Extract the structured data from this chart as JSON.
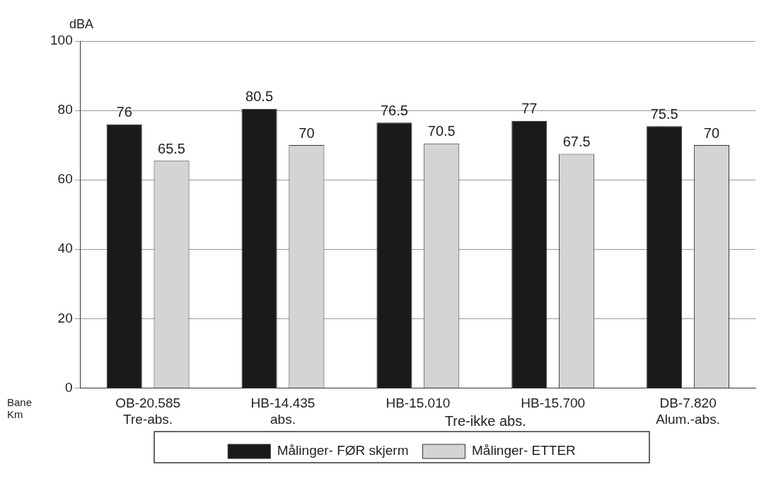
{
  "chart_data": {
    "type": "bar",
    "ylabel": "dBA",
    "categories": [
      "OB-20.585\nTre-abs.",
      "HB-14.435\nabs.",
      "HB-15.010",
      "HB-15.700",
      "DB-7.820\nAlum.-abs."
    ],
    "series": [
      {
        "name": "Målinger- FØR skjerm",
        "color": "#1a1a1a",
        "values": [
          76,
          80.5,
          76.5,
          77,
          75.5
        ]
      },
      {
        "name": "Målinger- ETTER",
        "color": "#d4d4d4",
        "values": [
          65.5,
          70,
          70.5,
          67.5,
          70
        ]
      }
    ],
    "ylim": [
      0,
      100
    ],
    "yticks": [
      0,
      20,
      40,
      60,
      80,
      100
    ],
    "grid": "y",
    "legend": "bottom",
    "data_labels": true,
    "annotations": [
      "Tre-ikke abs.",
      "Bane\nKm"
    ]
  }
}
